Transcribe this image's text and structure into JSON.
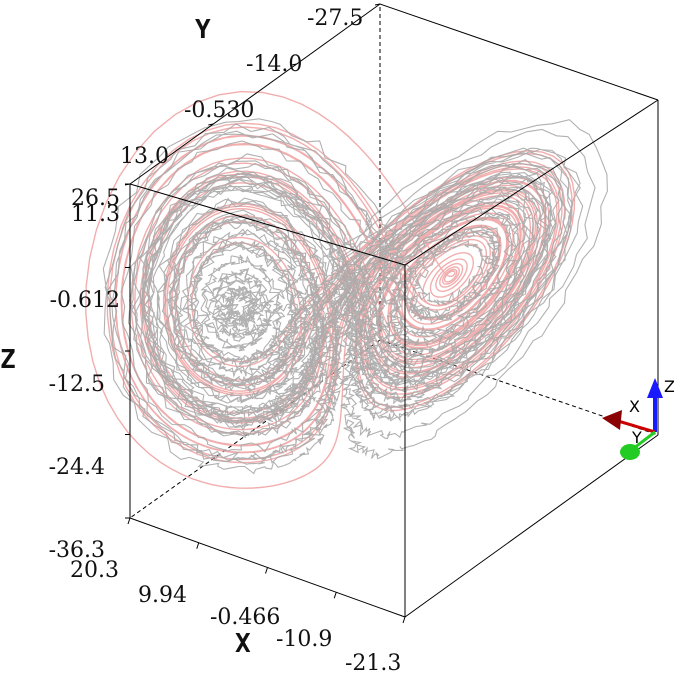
{
  "chart_data": {
    "type": "line",
    "projection": "3d",
    "title": "",
    "axes": {
      "x": {
        "label": "X",
        "range": [
          -21.3,
          20.3
        ],
        "tick_labels": [
          "20.3",
          "9.94",
          "-0.466",
          "-10.9",
          "-21.3"
        ]
      },
      "y": {
        "label": "Y",
        "range": [
          -27.5,
          13.0
        ],
        "tick_labels": [
          "13.0",
          "-0.530",
          "-14.0",
          "-27.5"
        ]
      },
      "z": {
        "label": "Z",
        "range": [
          -36.3,
          26.5
        ],
        "tick_labels": [
          "26.5",
          "11.3",
          "-0.612",
          "-12.5",
          "-24.4",
          "-36.3"
        ]
      }
    },
    "series": [
      {
        "color": "#a8a8a8"
      },
      {
        "color": "#f0a0a0"
      }
    ],
    "grid": false,
    "bounding_box": true,
    "orientation_triad": {
      "x_label": "X",
      "y_label": "Y",
      "z_label": "Z",
      "x_color": "#8b0000",
      "y_color": "#22cc22",
      "z_color": "#1a1aff"
    }
  }
}
